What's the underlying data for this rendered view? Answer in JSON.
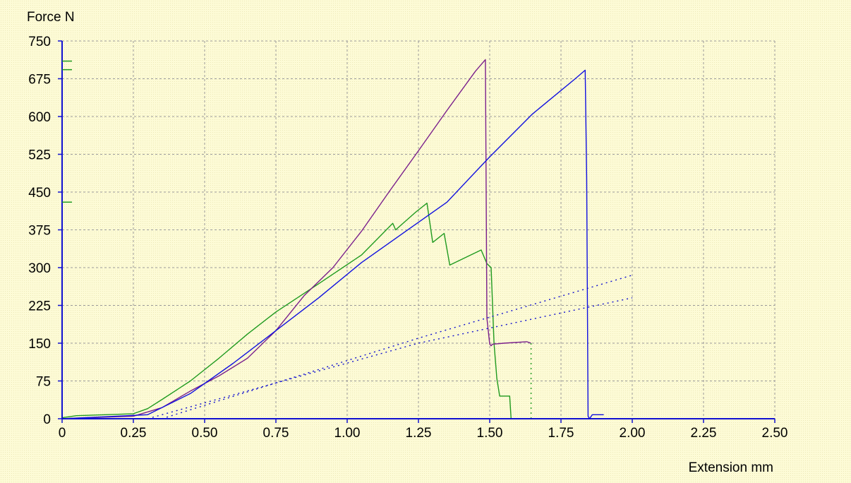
{
  "chart_data": {
    "type": "line",
    "title": "",
    "xlabel": "Extension mm",
    "ylabel": "Force N",
    "xlim": [
      0,
      2.5
    ],
    "ylim": [
      0,
      750
    ],
    "x_ticks": [
      "0",
      "0.25",
      "0.50",
      "0.75",
      "1.00",
      "1.25",
      "1.50",
      "1.75",
      "2.00",
      "2.25",
      "2.50"
    ],
    "y_ticks": [
      "0",
      "75",
      "150",
      "225",
      "300",
      "375",
      "450",
      "525",
      "600",
      "675",
      "750"
    ],
    "x_tick_values": [
      0,
      0.25,
      0.5,
      0.75,
      1.0,
      1.25,
      1.5,
      1.75,
      2.0,
      2.25,
      2.5
    ],
    "y_tick_values": [
      0,
      75,
      150,
      225,
      300,
      375,
      450,
      525,
      600,
      675,
      750
    ],
    "grid": true,
    "colors": {
      "axis": "#1010d0",
      "grid": "#9a9a9a",
      "text": "#000000"
    },
    "axis_markers": [
      {
        "y": 710,
        "color": "#1f9a1f"
      },
      {
        "y": 693,
        "color": "#1f9a1f"
      },
      {
        "y": 430,
        "color": "#1f9a1f"
      }
    ],
    "series": [
      {
        "color": "#1f9a1f",
        "style": "solid",
        "x": [
          0,
          0.05,
          0.15,
          0.25,
          0.3,
          0.35,
          0.45,
          0.55,
          0.65,
          0.75,
          0.9,
          1.05,
          1.16,
          1.17,
          1.24,
          1.28,
          1.3,
          1.34,
          1.36,
          1.47,
          1.49,
          1.505,
          1.515,
          1.525,
          1.535,
          1.57,
          1.575
        ],
        "y": [
          2,
          6,
          8,
          10,
          20,
          38,
          75,
          120,
          168,
          212,
          268,
          325,
          388,
          375,
          410,
          428,
          350,
          368,
          305,
          335,
          308,
          300,
          150,
          80,
          45,
          45,
          0
        ]
      },
      {
        "color": "#7a1f8c",
        "style": "solid",
        "x": [
          0,
          0.25,
          0.35,
          0.45,
          0.55,
          0.65,
          0.75,
          0.85,
          0.95,
          1.05,
          1.15,
          1.25,
          1.35,
          1.45,
          1.485,
          1.49,
          1.5,
          1.505,
          1.51,
          1.55,
          1.63,
          1.645
        ],
        "y": [
          0,
          5,
          22,
          55,
          85,
          120,
          175,
          245,
          300,
          372,
          453,
          532,
          612,
          690,
          713,
          200,
          148,
          145,
          148,
          150,
          153,
          150
        ]
      },
      {
        "color": "#1010e0",
        "style": "solid",
        "x": [
          0,
          0.3,
          0.45,
          0.6,
          0.75,
          0.9,
          1.05,
          1.2,
          1.35,
          1.5,
          1.65,
          1.8,
          1.835,
          1.84,
          1.845,
          1.85,
          1.86,
          1.9
        ],
        "y": [
          0,
          8,
          50,
          110,
          175,
          240,
          310,
          370,
          430,
          520,
          605,
          675,
          692,
          480,
          5,
          0,
          8,
          8
        ]
      },
      {
        "color": "#1f9a1f",
        "style": "dotted",
        "x": [
          1.645,
          1.645
        ],
        "y": [
          0,
          150
        ]
      },
      {
        "color": "#1010d0",
        "style": "dotted",
        "x": [
          0.3,
          1.25,
          2.0
        ],
        "y": [
          0,
          150,
          240
        ]
      },
      {
        "color": "#1010d0",
        "style": "dotted",
        "x": [
          0.35,
          1.25,
          2.0
        ],
        "y": [
          0,
          160,
          285
        ]
      }
    ]
  }
}
